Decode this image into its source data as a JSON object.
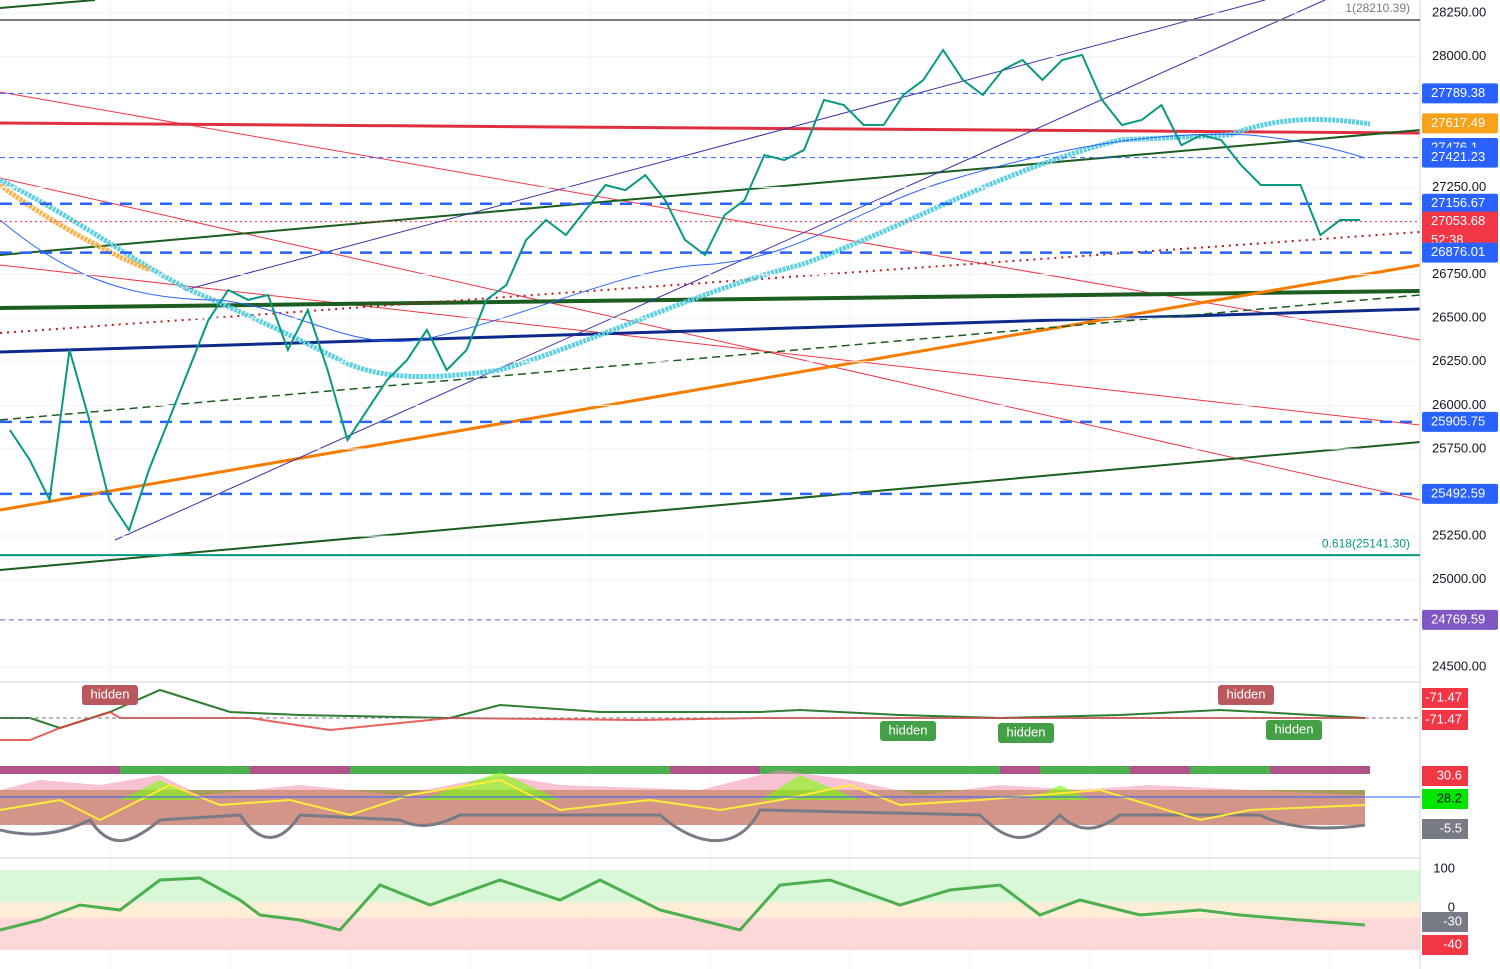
{
  "chart_data": {
    "type": "line",
    "color": "#089981",
    "values": [
      25859,
      25687,
      25458,
      26318,
      25916,
      25458,
      25285,
      25630,
      25916,
      26203,
      26490,
      26662,
      26605,
      26633,
      26318,
      26547,
      26203,
      25802,
      25974,
      26146,
      26260,
      26433,
      26203,
      26318,
      26605,
      26690,
      26949,
      27063,
      26977,
      27121,
      27264,
      27235,
      27321,
      27178,
      26949,
      26863,
      27092,
      27178,
      27436,
      27407,
      27465,
      27752,
      27723,
      27608,
      27608,
      27780,
      27866,
      28038,
      27866,
      27780,
      27924,
      27981,
      27866,
      27981,
      28010,
      27752,
      27608,
      27637,
      27723,
      27493,
      27551,
      27522,
      27379,
      27264,
      27264,
      27264,
      26977,
      27063,
      27063
    ],
    "ylim": [
      24425,
      28325
    ],
    "yticks": [
      {
        "value": 28250,
        "label": "28250.00"
      },
      {
        "value": 28000,
        "label": "28000.00"
      },
      {
        "value": 27250,
        "label": "27250.00"
      },
      {
        "value": 26750,
        "label": "26750.00"
      },
      {
        "value": 26500,
        "label": "26500.00"
      },
      {
        "value": 26250,
        "label": "26250.00"
      },
      {
        "value": 26000,
        "label": "26000.00"
      },
      {
        "value": 25750,
        "label": "25750.00"
      },
      {
        "value": 25250,
        "label": "25250.00"
      },
      {
        "value": 25000,
        "label": "25000.00"
      },
      {
        "value": 24500,
        "label": "24500.00"
      }
    ],
    "fib_levels": [
      {
        "value": 28210.39,
        "label": "1(28210.39)",
        "color": "#787b86"
      },
      {
        "value": 25141.3,
        "label": "0.618(25141.30)",
        "color": "#089981"
      }
    ],
    "price_levels": [
      {
        "value": 27789.38,
        "color": "#2962ff",
        "style": "thin-dashed"
      },
      {
        "value": 27617.49,
        "color": "#f7a21b",
        "style": "none"
      },
      {
        "value": 27476.1,
        "color": "#2962ff",
        "style": "none"
      },
      {
        "value": 27421.23,
        "color": "#2962ff",
        "style": "thin-dashed"
      },
      {
        "value": 27156.67,
        "color": "#2962ff",
        "style": "thick-dashed"
      },
      {
        "value": 27053.68,
        "color": "#f23645",
        "style": "dotted"
      },
      {
        "value": 26876.01,
        "color": "#2962ff",
        "style": "thick-dashed"
      },
      {
        "value": 25905.75,
        "color": "#2962ff",
        "style": "thick-dashed"
      },
      {
        "value": 25492.59,
        "color": "#2962ff",
        "style": "thick-dashed"
      },
      {
        "value": 24769.59,
        "color": "#7e57c2",
        "style": "thin-dashed"
      }
    ],
    "countdown": "52:38"
  },
  "indicators": {
    "hidden_labels": [
      "hidden",
      "hidden",
      "hidden",
      "hidden",
      "hidden"
    ],
    "labels": [
      {
        "value": -71.47,
        "color": "#f23645"
      },
      {
        "value": -71.47,
        "color": "#f23645"
      },
      {
        "value": 30.6,
        "color": "#f23645"
      },
      {
        "value": 28.2,
        "color": "#00e600"
      },
      {
        "value": -5.5,
        "color": "#787b86"
      },
      {
        "value": 100,
        "color": "none"
      },
      {
        "value": 0,
        "color": "none"
      },
      {
        "value": -30,
        "color": "#787b86"
      },
      {
        "value": -40,
        "color": "#f23645"
      }
    ]
  }
}
